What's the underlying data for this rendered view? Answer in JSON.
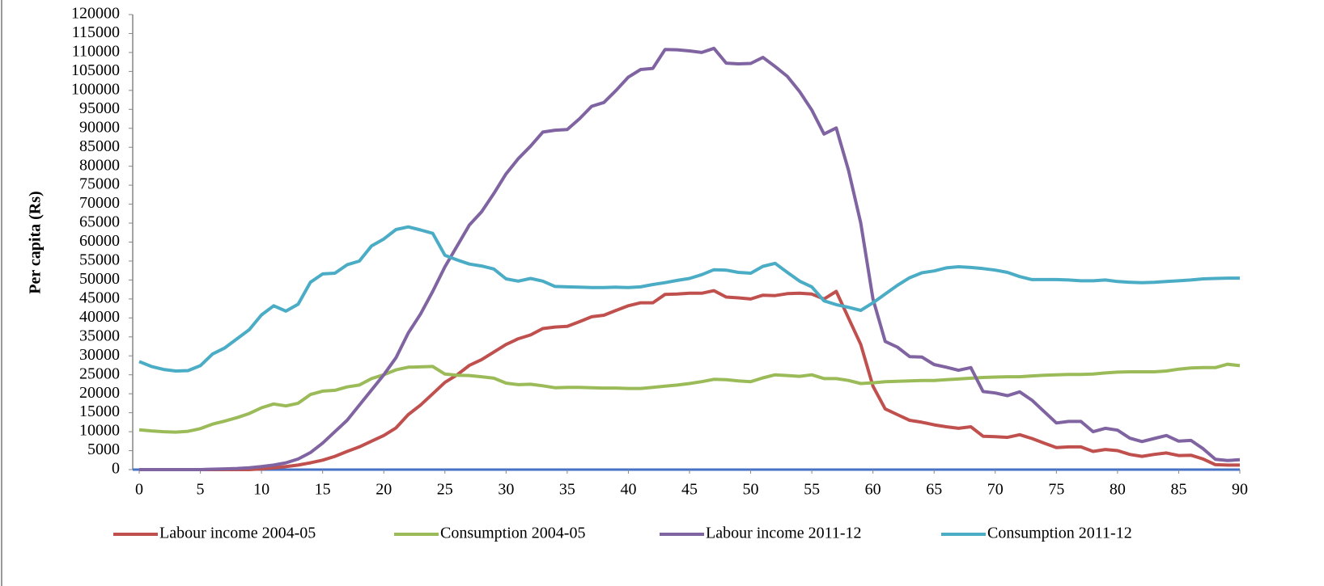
{
  "chart_data": {
    "type": "line",
    "y_label": "Per  capita (Rs)",
    "x": [
      0,
      1,
      2,
      3,
      4,
      5,
      6,
      7,
      8,
      9,
      10,
      11,
      12,
      13,
      14,
      15,
      16,
      17,
      18,
      19,
      20,
      21,
      22,
      23,
      24,
      25,
      26,
      27,
      28,
      29,
      30,
      31,
      32,
      33,
      34,
      35,
      36,
      37,
      38,
      39,
      40,
      41,
      42,
      43,
      44,
      45,
      46,
      47,
      48,
      49,
      50,
      51,
      52,
      53,
      54,
      55,
      56,
      57,
      58,
      59,
      60,
      61,
      62,
      63,
      64,
      65,
      66,
      67,
      68,
      69,
      70,
      71,
      72,
      73,
      74,
      75,
      76,
      77,
      78,
      79,
      80,
      81,
      82,
      83,
      84,
      85,
      86,
      87,
      88,
      89,
      90
    ],
    "xlim": [
      0,
      90
    ],
    "xticks": [
      0,
      5,
      10,
      15,
      20,
      25,
      30,
      35,
      40,
      45,
      50,
      55,
      60,
      65,
      70,
      75,
      80,
      85,
      90
    ],
    "ylim": [
      0,
      120000
    ],
    "yticks": [
      0,
      5000,
      10000,
      15000,
      20000,
      25000,
      30000,
      35000,
      40000,
      45000,
      50000,
      55000,
      60000,
      65000,
      70000,
      75000,
      80000,
      85000,
      90000,
      95000,
      100000,
      105000,
      110000,
      115000,
      120000
    ],
    "legend": "bottom",
    "series": [
      {
        "name": "Labour income 2004-05",
        "color": "#c0504d",
        "values": [
          0,
          0,
          0,
          0,
          0,
          0,
          0,
          0,
          0,
          0,
          200,
          500,
          800,
          1200,
          1800,
          2500,
          3500,
          4800,
          6000,
          7500,
          9000,
          11000,
          14500,
          17000,
          20000,
          23000,
          25000,
          27500,
          29000,
          31000,
          33000,
          34500,
          35500,
          37200,
          37600,
          37800,
          39000,
          40300,
          40700,
          42000,
          43200,
          44000,
          44000,
          46200,
          46300,
          46500,
          46500,
          47200,
          45500,
          45300,
          45000,
          46000,
          45900,
          46400,
          46500,
          46300,
          45000,
          47000,
          40000,
          33000,
          22000,
          16000,
          14500,
          13000,
          12500,
          11800,
          11300,
          10900,
          11300,
          8800,
          8700,
          8500,
          9200,
          8200,
          7000,
          5800,
          6000,
          6000,
          4800,
          5300,
          5000,
          4000,
          3500,
          4000,
          4400,
          3700,
          3800,
          2800,
          1300,
          1200,
          1200
        ]
      },
      {
        "name": "Consumption 2004-05",
        "color": "#9bbb59",
        "values": [
          10500,
          10200,
          10000,
          9900,
          10100,
          10800,
          12000,
          12800,
          13700,
          14800,
          16300,
          17300,
          16800,
          17500,
          19800,
          20700,
          20900,
          21800,
          22300,
          24000,
          25000,
          26300,
          27000,
          27100,
          27200,
          25200,
          24900,
          24800,
          24500,
          24100,
          22800,
          22400,
          22500,
          22100,
          21600,
          21700,
          21700,
          21600,
          21500,
          21500,
          21400,
          21400,
          21700,
          22000,
          22300,
          22700,
          23200,
          23800,
          23700,
          23400,
          23200,
          24200,
          25000,
          24800,
          24600,
          25000,
          24000,
          24000,
          23500,
          22700,
          22900,
          23200,
          23300,
          23400,
          23500,
          23500,
          23700,
          23900,
          24100,
          24300,
          24400,
          24500,
          24500,
          24700,
          24900,
          25000,
          25100,
          25100,
          25200,
          25500,
          25700,
          25800,
          25800,
          25800,
          26000,
          26500,
          26800,
          26900,
          26900,
          27800,
          27400
        ]
      },
      {
        "name": "Labour income 2011-12",
        "color": "#8064a2",
        "values": [
          0,
          0,
          0,
          0,
          0,
          0,
          100,
          200,
          300,
          500,
          800,
          1200,
          1800,
          2800,
          4500,
          7000,
          10000,
          13000,
          17000,
          21000,
          25000,
          29500,
          36000,
          41000,
          47000,
          53500,
          59000,
          64500,
          68000,
          72800,
          78000,
          82000,
          85300,
          89000,
          89500,
          89700,
          92500,
          95800,
          96800,
          100000,
          103500,
          105500,
          105800,
          110800,
          110700,
          110400,
          110000,
          111100,
          107200,
          107000,
          107100,
          108700,
          106300,
          103700,
          99700,
          94800,
          88500,
          90100,
          79000,
          65000,
          45000,
          33800,
          32300,
          29800,
          29700,
          27700,
          27000,
          26200,
          26900,
          20600,
          20200,
          19500,
          20500,
          18300,
          15300,
          12300,
          12700,
          12700,
          10000,
          10900,
          10400,
          8300,
          7400,
          8200,
          9000,
          7500,
          7700,
          5500,
          2700,
          2400,
          2600
        ]
      },
      {
        "name": "Consumption 2011-12",
        "color": "#4bacc6",
        "values": [
          28500,
          27200,
          26400,
          26000,
          26100,
          27400,
          30500,
          32100,
          34500,
          36900,
          40800,
          43200,
          41800,
          43600,
          49400,
          51600,
          51800,
          54000,
          55000,
          59000,
          60800,
          63300,
          64000,
          63200,
          62300,
          56500,
          55300,
          54200,
          53700,
          52900,
          50300,
          49700,
          50400,
          49700,
          48300,
          48200,
          48100,
          48000,
          48000,
          48100,
          48000,
          48200,
          48800,
          49300,
          49900,
          50400,
          51400,
          52700,
          52600,
          52000,
          51800,
          53600,
          54400,
          52000,
          49700,
          48200,
          44500,
          43500,
          42800,
          42000,
          44000,
          46300,
          48600,
          50600,
          51900,
          52400,
          53200,
          53500,
          53300,
          53000,
          52600,
          52000,
          50900,
          50100,
          50100,
          50100,
          50000,
          49800,
          49800,
          50000,
          49600,
          49400,
          49300,
          49400,
          49600,
          49800,
          50000,
          50300,
          50400,
          50500,
          50500
        ]
      }
    ]
  }
}
